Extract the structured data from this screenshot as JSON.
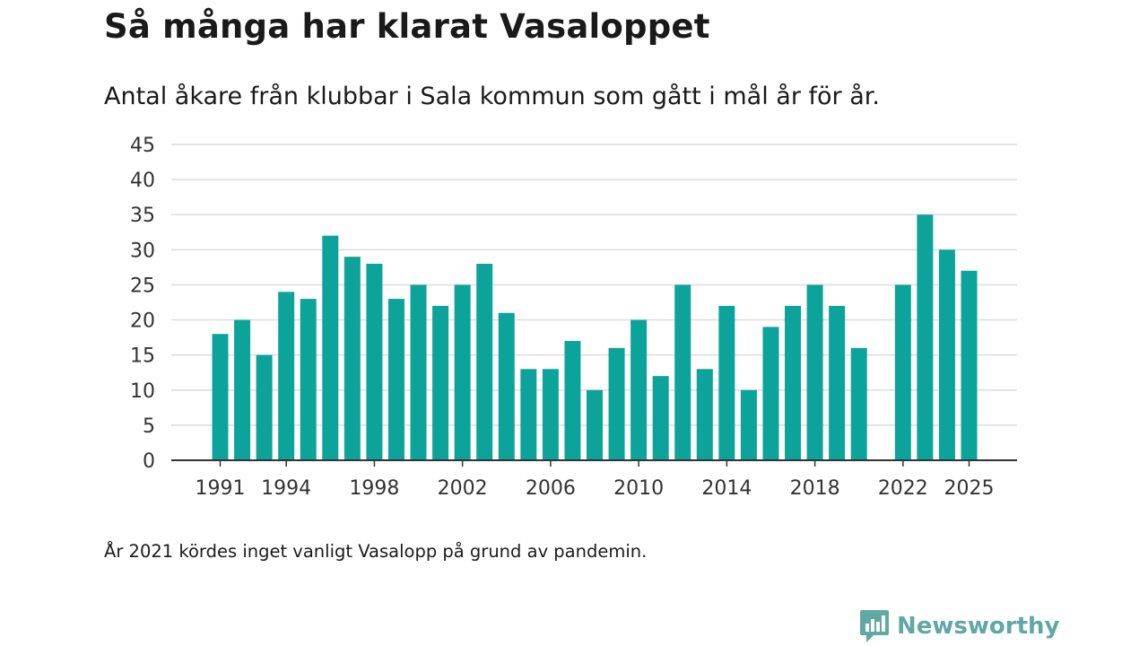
{
  "header": {
    "title": "Så många har klarat Vasaloppet",
    "subtitle": "Antal åkare från klubbar i Sala kommun som gått i mål år för år."
  },
  "footer": {
    "note": "År 2021 kördes inget vanligt Vasalopp på grund av pandemin."
  },
  "brand": {
    "name": "Newsworthy",
    "icon": "newsworthy-logo-icon",
    "color": "#5fa8a4"
  },
  "chart_data": {
    "type": "bar",
    "title": "Så många har klarat Vasaloppet",
    "subtitle": "Antal åkare från klubbar i Sala kommun som gått i mål år för år.",
    "xlabel": "",
    "ylabel": "",
    "ylim": [
      0,
      45
    ],
    "yticks": [
      0,
      5,
      10,
      15,
      20,
      25,
      30,
      35,
      40,
      45
    ],
    "xticks": [
      1991,
      1994,
      1998,
      2002,
      2006,
      2010,
      2014,
      2018,
      2022,
      2025
    ],
    "grid": true,
    "bar_color": "#0ca49a",
    "categories": [
      1991,
      1992,
      1993,
      1994,
      1995,
      1996,
      1997,
      1998,
      1999,
      2000,
      2001,
      2002,
      2003,
      2004,
      2005,
      2006,
      2007,
      2008,
      2009,
      2010,
      2011,
      2012,
      2013,
      2014,
      2015,
      2016,
      2017,
      2018,
      2019,
      2020,
      2021,
      2022,
      2023,
      2024,
      2025
    ],
    "values": [
      18,
      20,
      15,
      24,
      23,
      32,
      29,
      28,
      23,
      25,
      22,
      25,
      28,
      21,
      13,
      13,
      17,
      10,
      16,
      20,
      12,
      25,
      13,
      22,
      10,
      19,
      22,
      25,
      22,
      16,
      null,
      25,
      35,
      30,
      27
    ]
  }
}
